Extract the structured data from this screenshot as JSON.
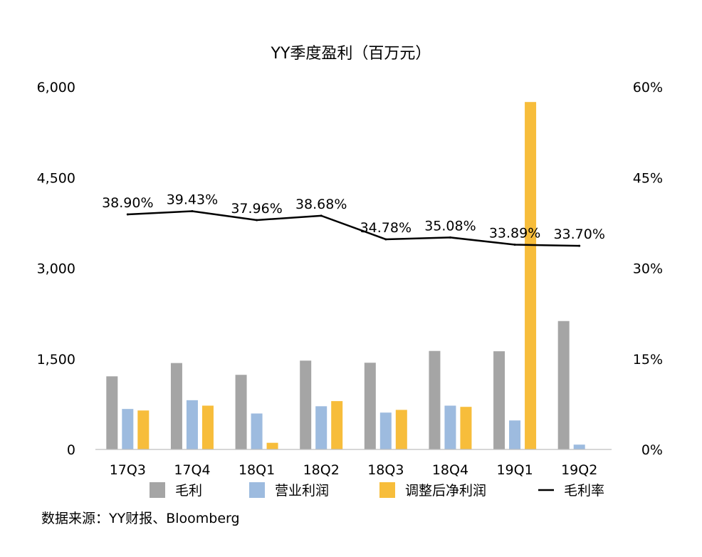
{
  "chart_data": {
    "type": "bar+line",
    "title": "YY季度盈利（百万元）",
    "categories": [
      "17Q3",
      "17Q4",
      "18Q1",
      "18Q2",
      "18Q3",
      "18Q4",
      "19Q1",
      "19Q2"
    ],
    "y_left": {
      "ticks": [
        "0",
        "1,500",
        "3,000",
        "4,500",
        "6,000"
      ],
      "ylim": [
        0,
        6000
      ]
    },
    "y_right": {
      "ticks": [
        "0%",
        "15%",
        "30%",
        "45%",
        "60%"
      ],
      "ylim": [
        0,
        60
      ]
    },
    "series": [
      {
        "name": "毛利",
        "type": "bar",
        "axis": "left",
        "color": "#a5a5a5",
        "values": [
          1210,
          1430,
          1235,
          1470,
          1435,
          1630,
          1625,
          2125
        ]
      },
      {
        "name": "营业利润",
        "type": "bar",
        "axis": "left",
        "color": "#9dbbdf",
        "values": [
          670,
          815,
          595,
          715,
          610,
          725,
          480,
          80
        ]
      },
      {
        "name": "调整后净利润",
        "type": "bar",
        "axis": "left",
        "color": "#f7bd3b",
        "values": [
          645,
          725,
          110,
          800,
          655,
          705,
          5750,
          null
        ]
      },
      {
        "name": "毛利率",
        "type": "line",
        "axis": "right",
        "color": "#000000",
        "values": [
          38.9,
          39.43,
          37.96,
          38.68,
          34.78,
          35.08,
          33.89,
          33.7
        ],
        "labels": [
          "38.90%",
          "39.43%",
          "37.96%",
          "38.68%",
          "34.78%",
          "35.08%",
          "33.89%",
          "33.70%"
        ]
      }
    ],
    "legend_position": "bottom",
    "grid": false
  },
  "source": "数据来源：YY财报、Bloomberg"
}
